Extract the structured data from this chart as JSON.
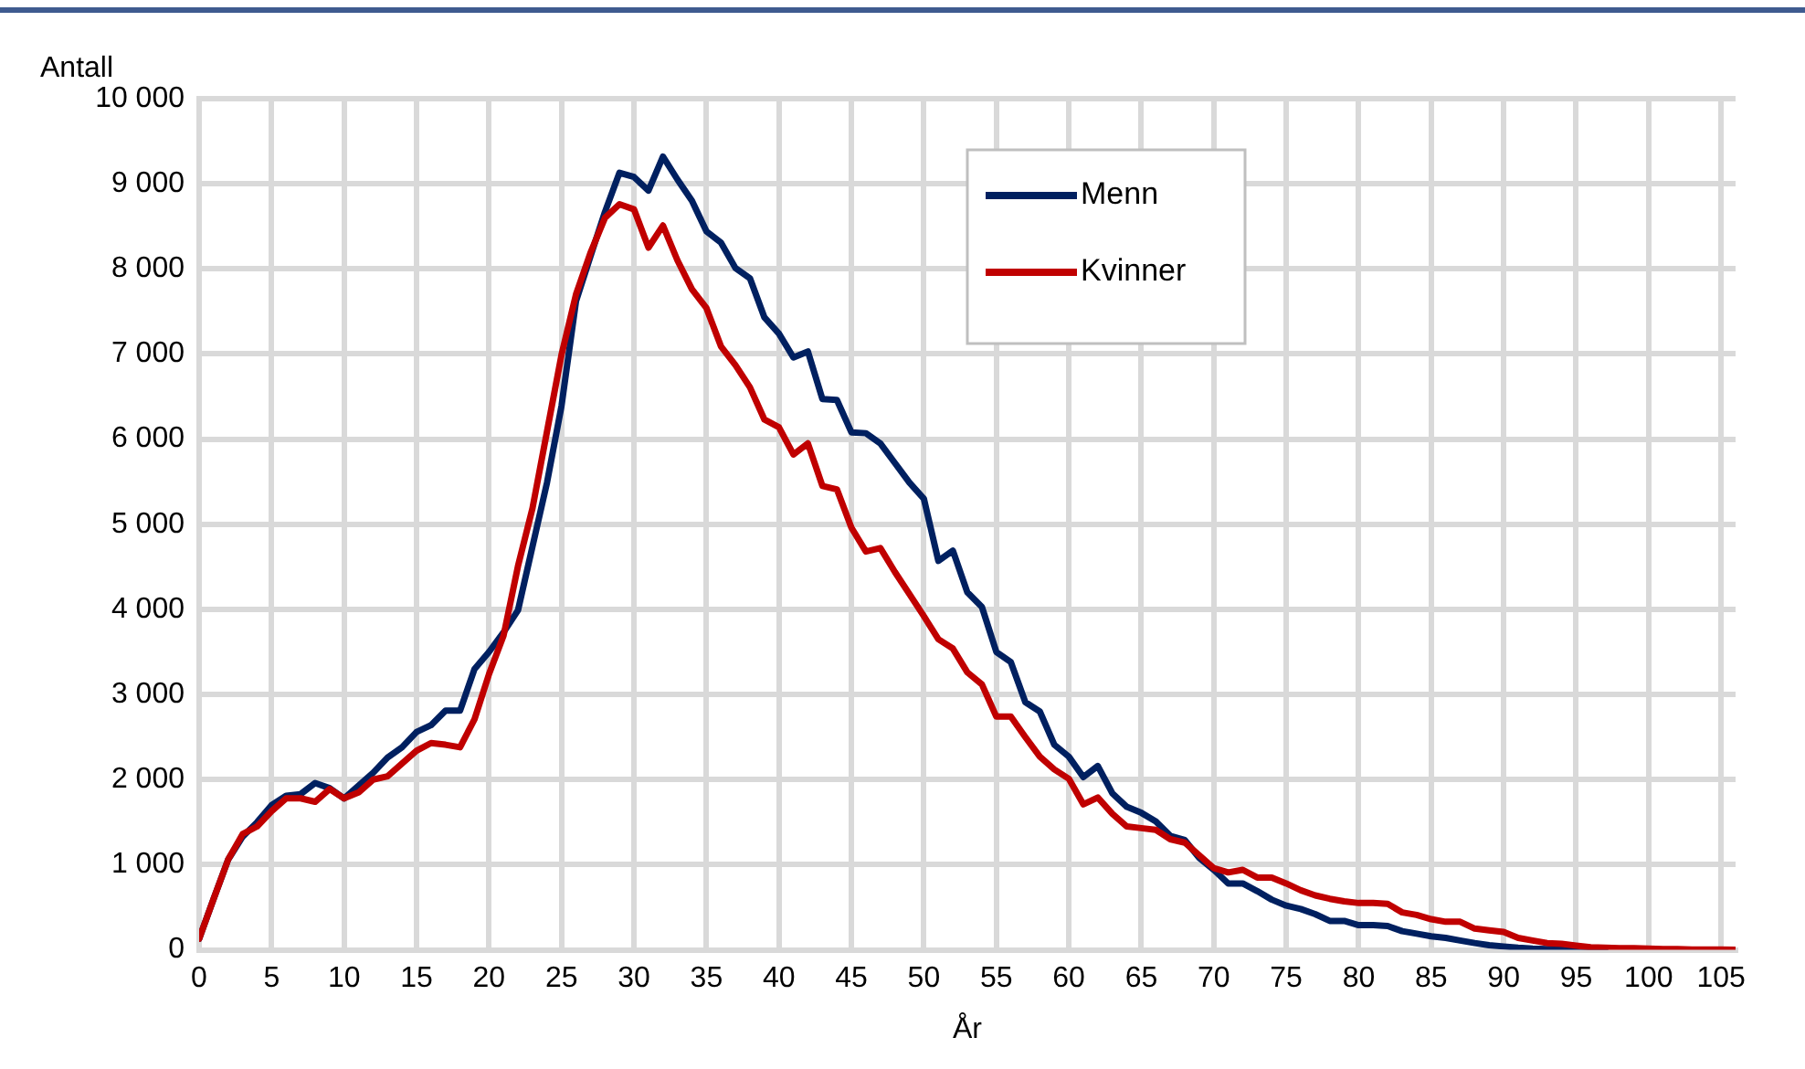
{
  "chart_data": {
    "type": "line",
    "ylabel": "Antall",
    "xlabel": "År",
    "x": [
      0,
      1,
      2,
      3,
      4,
      5,
      6,
      7,
      8,
      9,
      10,
      11,
      12,
      13,
      14,
      15,
      16,
      17,
      18,
      19,
      20,
      21,
      22,
      23,
      24,
      25,
      26,
      27,
      28,
      29,
      30,
      31,
      32,
      33,
      34,
      35,
      36,
      37,
      38,
      39,
      40,
      41,
      42,
      43,
      44,
      45,
      46,
      47,
      48,
      49,
      50,
      51,
      52,
      53,
      54,
      55,
      56,
      57,
      58,
      59,
      60,
      61,
      62,
      63,
      64,
      65,
      66,
      67,
      68,
      69,
      70,
      71,
      72,
      73,
      74,
      75,
      76,
      77,
      78,
      79,
      80,
      81,
      82,
      83,
      84,
      85,
      86,
      87,
      88,
      89,
      90,
      91,
      92,
      93,
      94,
      95,
      96,
      97,
      98,
      99,
      100,
      101,
      102,
      103,
      104,
      105,
      106
    ],
    "series": [
      {
        "name": "Menn",
        "color": "#002060",
        "values": [
          130,
          600,
          1060,
          1330,
          1500,
          1700,
          1810,
          1830,
          1960,
          1900,
          1780,
          1930,
          2080,
          2260,
          2380,
          2560,
          2640,
          2810,
          2810,
          3300,
          3500,
          3730,
          3990,
          4740,
          5490,
          6390,
          7620,
          8150,
          8670,
          9130,
          9080,
          8920,
          9320,
          9050,
          8800,
          8440,
          8310,
          8010,
          7890,
          7430,
          7240,
          6960,
          7030,
          6470,
          6460,
          6080,
          6070,
          5950,
          5720,
          5490,
          5300,
          4570,
          4690,
          4200,
          4030,
          3500,
          3380,
          2910,
          2800,
          2410,
          2270,
          2030,
          2160,
          1840,
          1680,
          1610,
          1510,
          1340,
          1290,
          1080,
          940,
          780,
          780,
          690,
          590,
          520,
          480,
          420,
          340,
          340,
          290,
          290,
          280,
          220,
          190,
          160,
          140,
          110,
          80,
          55,
          40,
          25,
          15,
          10,
          10,
          10,
          0,
          0,
          null,
          null,
          null,
          null,
          null,
          null,
          null,
          null,
          null
        ]
      },
      {
        "name": "Kvinner",
        "color": "#c00000",
        "values": [
          130,
          600,
          1060,
          1360,
          1450,
          1630,
          1780,
          1780,
          1740,
          1890,
          1780,
          1850,
          2000,
          2040,
          2190,
          2340,
          2430,
          2410,
          2380,
          2710,
          3240,
          3690,
          4510,
          5190,
          6090,
          6990,
          7700,
          8190,
          8600,
          8760,
          8700,
          8250,
          8510,
          8100,
          7760,
          7540,
          7090,
          6870,
          6610,
          6230,
          6140,
          5820,
          5950,
          5450,
          5410,
          4960,
          4680,
          4720,
          4440,
          4180,
          3920,
          3650,
          3540,
          3260,
          3120,
          2740,
          2740,
          2500,
          2270,
          2120,
          2010,
          1710,
          1790,
          1600,
          1450,
          1430,
          1410,
          1300,
          1260,
          1110,
          960,
          910,
          940,
          850,
          850,
          780,
          700,
          640,
          600,
          570,
          550,
          550,
          540,
          440,
          410,
          360,
          330,
          330,
          250,
          230,
          210,
          140,
          110,
          80,
          70,
          50,
          30,
          25,
          20,
          20,
          15,
          10,
          10,
          5,
          5,
          3,
          2
        ]
      }
    ],
    "xlim": [
      0,
      106
    ],
    "xticks": [
      0,
      5,
      10,
      15,
      20,
      25,
      30,
      35,
      40,
      45,
      50,
      55,
      60,
      65,
      70,
      75,
      80,
      85,
      90,
      95,
      100,
      105
    ],
    "ylim": [
      0,
      10000
    ],
    "yticks": [
      0,
      {
        "value": 1000,
        "label": "1 000"
      },
      {
        "value": 2000,
        "label": "2 000"
      },
      {
        "value": 3000,
        "label": "3 000"
      },
      {
        "value": 4000,
        "label": "4 000"
      },
      {
        "value": 5000,
        "label": "5 000"
      },
      {
        "value": 6000,
        "label": "6 000"
      },
      {
        "value": 7000,
        "label": "7 000"
      },
      {
        "value": 8000,
        "label": "8 000"
      },
      {
        "value": 9000,
        "label": "9 000"
      },
      {
        "value": 10000,
        "label": "10 000"
      }
    ],
    "grid": true,
    "legend": "top right",
    "marker": "none",
    "line_style": "solid"
  }
}
